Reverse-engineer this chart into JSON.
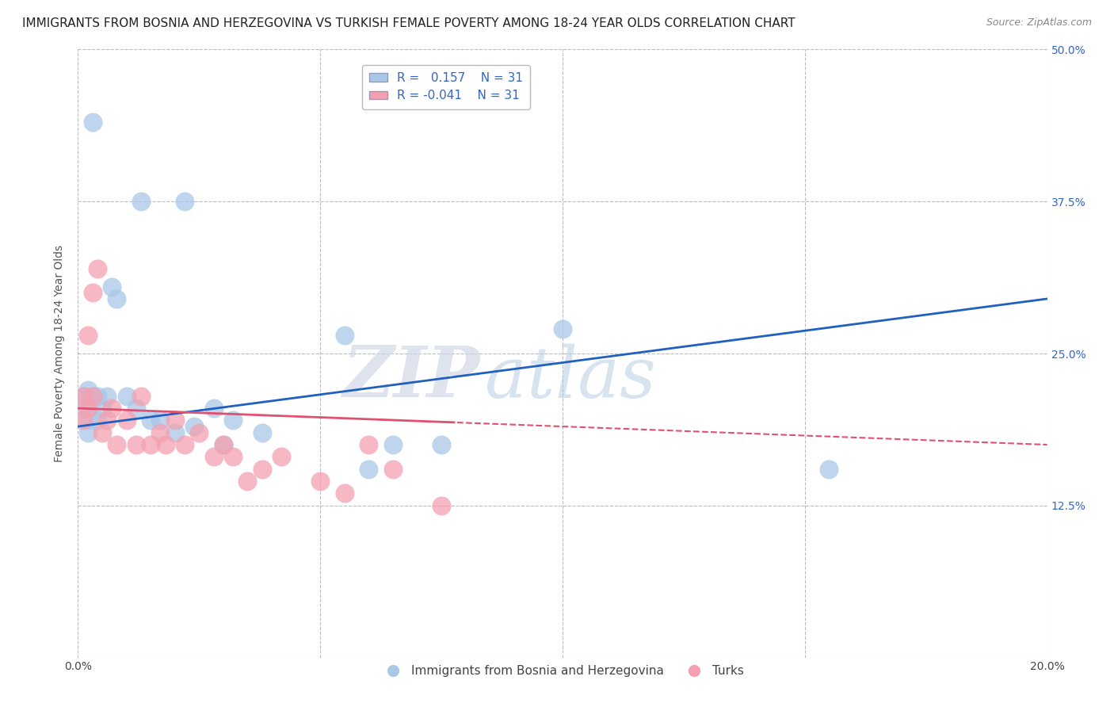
{
  "title": "IMMIGRANTS FROM BOSNIA AND HERZEGOVINA VS TURKISH FEMALE POVERTY AMONG 18-24 YEAR OLDS CORRELATION CHART",
  "source": "Source: ZipAtlas.com",
  "ylabel": "Female Poverty Among 18-24 Year Olds",
  "xlim": [
    0.0,
    0.2
  ],
  "ylim": [
    0.0,
    0.5
  ],
  "xticks": [
    0.0,
    0.05,
    0.1,
    0.15,
    0.2
  ],
  "xticklabels": [
    "0.0%",
    "",
    "",
    "",
    "20.0%"
  ],
  "yticks": [
    0.0,
    0.125,
    0.25,
    0.375,
    0.5
  ],
  "yticklabels": [
    "",
    "12.5%",
    "25.0%",
    "37.5%",
    "50.0%"
  ],
  "blue_color": "#a8c8e8",
  "pink_color": "#f4a0b0",
  "line_blue": "#2060c0",
  "line_pink": "#e05070",
  "R_blue": 0.157,
  "N_blue": 31,
  "R_pink": -0.041,
  "N_pink": 31,
  "legend_label_blue": "Immigrants from Bosnia and Herzegovina",
  "legend_label_pink": "Turks",
  "watermark_zip": "ZIP",
  "watermark_atlas": "atlas",
  "background_color": "#ffffff",
  "grid_color": "#bbbbbb",
  "blue_scatter_x": [
    0.001,
    0.001,
    0.002,
    0.002,
    0.002,
    0.003,
    0.003,
    0.004,
    0.004,
    0.005,
    0.006,
    0.007,
    0.008,
    0.01,
    0.012,
    0.013,
    0.015,
    0.017,
    0.02,
    0.022,
    0.024,
    0.028,
    0.03,
    0.032,
    0.038,
    0.055,
    0.06,
    0.065,
    0.075,
    0.1,
    0.155
  ],
  "blue_scatter_y": [
    0.215,
    0.205,
    0.22,
    0.195,
    0.185,
    0.215,
    0.44,
    0.215,
    0.195,
    0.205,
    0.215,
    0.305,
    0.295,
    0.215,
    0.205,
    0.375,
    0.195,
    0.195,
    0.185,
    0.375,
    0.19,
    0.205,
    0.175,
    0.195,
    0.185,
    0.265,
    0.155,
    0.175,
    0.175,
    0.27,
    0.155
  ],
  "pink_scatter_x": [
    0.001,
    0.001,
    0.002,
    0.002,
    0.003,
    0.003,
    0.004,
    0.005,
    0.006,
    0.007,
    0.008,
    0.01,
    0.012,
    0.013,
    0.015,
    0.017,
    0.018,
    0.02,
    0.022,
    0.025,
    0.028,
    0.03,
    0.032,
    0.035,
    0.038,
    0.042,
    0.05,
    0.055,
    0.06,
    0.065,
    0.075
  ],
  "pink_scatter_y": [
    0.215,
    0.195,
    0.265,
    0.205,
    0.215,
    0.3,
    0.32,
    0.185,
    0.195,
    0.205,
    0.175,
    0.195,
    0.175,
    0.215,
    0.175,
    0.185,
    0.175,
    0.195,
    0.175,
    0.185,
    0.165,
    0.175,
    0.165,
    0.145,
    0.155,
    0.165,
    0.145,
    0.135,
    0.175,
    0.155,
    0.125
  ],
  "title_fontsize": 11,
  "axis_fontsize": 10,
  "tick_fontsize": 10,
  "legend_fontsize": 11
}
